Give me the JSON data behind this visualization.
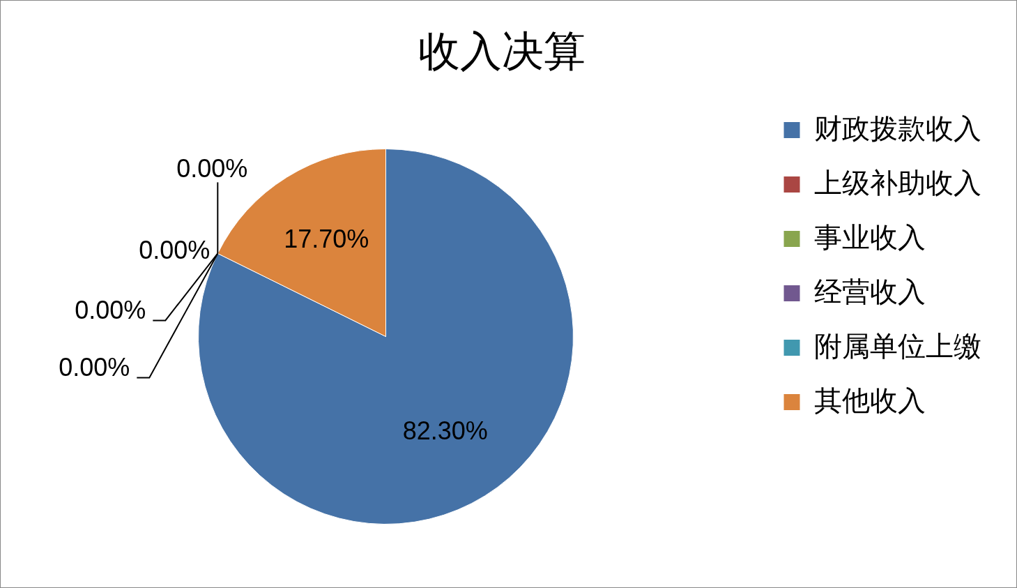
{
  "chart_data": {
    "type": "pie",
    "title": "收入决算",
    "categories": [
      "财政拨款收入",
      "上级补助收入",
      "事业收入",
      "经营收入",
      "附属单位上缴",
      "其他收入"
    ],
    "values": [
      82.3,
      0,
      0,
      0,
      0,
      17.7
    ],
    "colors": [
      "#4572a7",
      "#aa4643",
      "#89a54e",
      "#71588f",
      "#4198af",
      "#db843d"
    ],
    "value_labels": [
      "82.30%",
      "0.00%",
      "0.00%",
      "0.00%",
      "0.00%",
      "17.70%"
    ],
    "legend": "right"
  }
}
